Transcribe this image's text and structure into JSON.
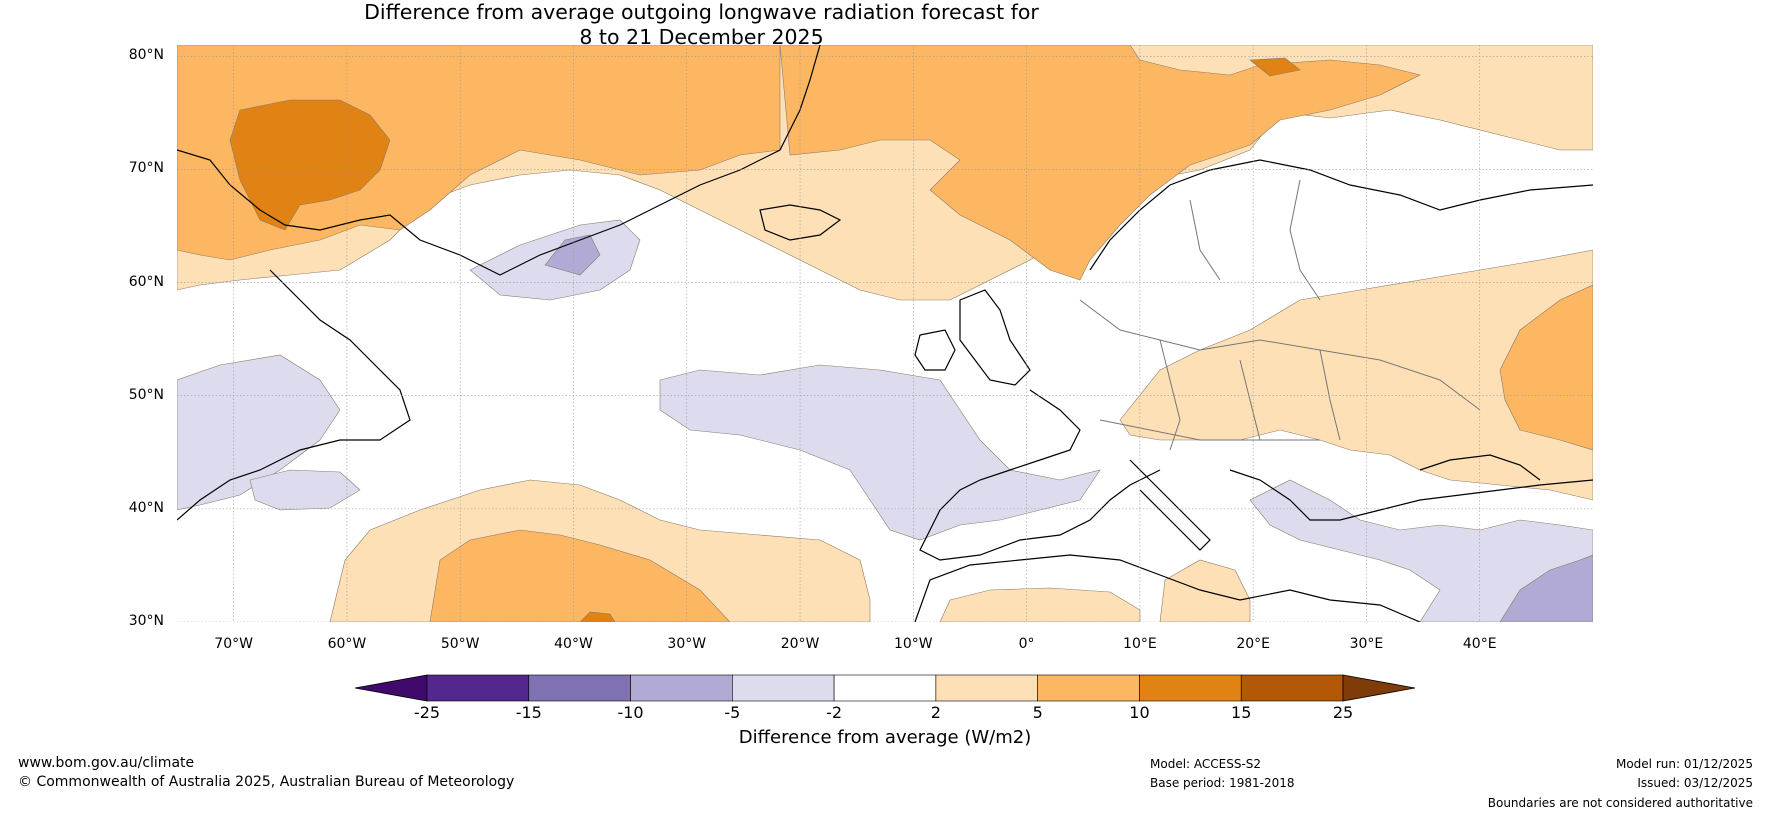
{
  "title": {
    "line1": "Difference from average outgoing longwave radiation forecast for",
    "line2": "8 to 21 December 2025"
  },
  "latitude_labels": [
    "80°N",
    "70°N",
    "60°N",
    "50°N",
    "40°N",
    "30°N"
  ],
  "latitude_values": [
    80,
    70,
    60,
    50,
    40,
    30
  ],
  "longitude_labels": [
    "70°W",
    "60°W",
    "50°W",
    "40°W",
    "30°W",
    "20°W",
    "10°W",
    "0°",
    "10°E",
    "20°E",
    "30°E",
    "40°E"
  ],
  "longitude_values": [
    -70,
    -60,
    -50,
    -40,
    -30,
    -20,
    -10,
    0,
    10,
    20,
    30,
    40
  ],
  "map_extent": {
    "lon_min": -75,
    "lon_max": 50,
    "lat_min": 30,
    "lat_max": 81
  },
  "colorbar": {
    "title": "Difference from average (W/m2)",
    "ticks": [
      "-25",
      "-15",
      "-10",
      "-5",
      "-2",
      "2",
      "5",
      "10",
      "15",
      "25"
    ],
    "colors": [
      "#3f0a6c",
      "#54278f",
      "#8072b2",
      "#b1aad5",
      "#dcdcee",
      "#ffffff",
      "#fee0b6",
      "#fdb762",
      "#e08214",
      "#b35806",
      "#7f3b08"
    ]
  },
  "footer": {
    "website": "www.bom.gov.au/climate",
    "copyright": "© Commonwealth of Australia 2025, Australian Bureau of Meteorology",
    "model": "Model: ACCESS-S2",
    "base_period": "Base period: 1981-2018",
    "model_run": "Model run: 01/12/2025",
    "issued": "Issued: 03/12/2025",
    "disclaimer": "Boundaries are not considered authoritative"
  }
}
